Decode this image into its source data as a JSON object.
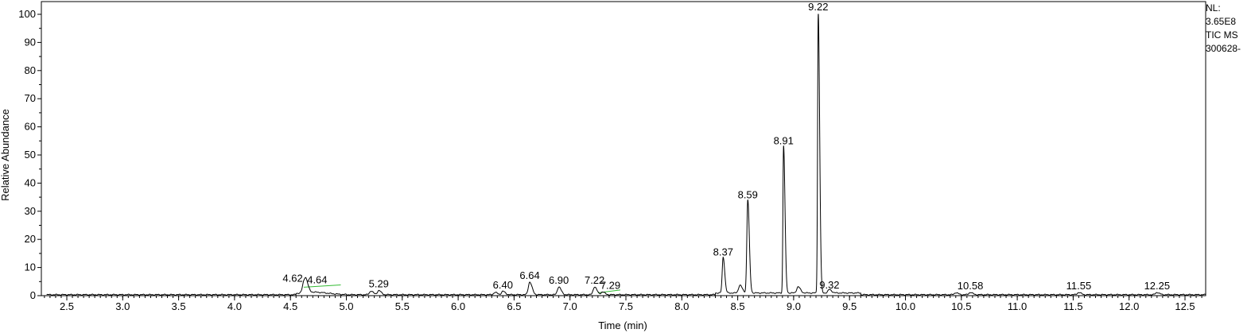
{
  "chart_data": {
    "type": "line",
    "xlabel": "Time (min)",
    "ylabel": "Relative Abundance",
    "xlim": [
      2.3,
      13.0
    ],
    "ylim": [
      0,
      100
    ],
    "x_ticks": [
      "2.5",
      "3.0",
      "3.5",
      "4.0",
      "4.5",
      "5.0",
      "5.5",
      "6.0",
      "6.5",
      "7.0",
      "7.5",
      "8.0",
      "8.5",
      "9.0",
      "9.5",
      "10.0",
      "10.5",
      "11.0",
      "11.5",
      "12.0",
      "12.5"
    ],
    "y_ticks": [
      "0",
      "10",
      "20",
      "30",
      "40",
      "50",
      "60",
      "70",
      "80",
      "90",
      "100"
    ],
    "grid": false,
    "legend": "none",
    "line_color": "#000000",
    "baseline_marker_color": "#33bb33",
    "peaks": [
      {
        "label": "4.62",
        "x": 4.62,
        "y": 3.5
      },
      {
        "label": "4.64",
        "x": 4.64,
        "y": 3.0
      },
      {
        "label": "5.29",
        "x": 5.29,
        "y": 1.5
      },
      {
        "label": "6.40",
        "x": 6.4,
        "y": 1.2
      },
      {
        "label": "6.64",
        "x": 6.64,
        "y": 4.5
      },
      {
        "label": "6.90",
        "x": 6.9,
        "y": 2.8
      },
      {
        "label": "7.22",
        "x": 7.22,
        "y": 2.8
      },
      {
        "label": "7.29",
        "x": 7.29,
        "y": 1.0
      },
      {
        "label": "8.37",
        "x": 8.37,
        "y": 12.8
      },
      {
        "label": "8.59",
        "x": 8.59,
        "y": 33.2
      },
      {
        "label": "8.91",
        "x": 8.91,
        "y": 52.4
      },
      {
        "label": "9.22",
        "x": 9.22,
        "y": 100
      },
      {
        "label": "9.32",
        "x": 9.32,
        "y": 1.2
      },
      {
        "label": "10.58",
        "x": 10.58,
        "y": 0.8
      },
      {
        "label": "11.55",
        "x": 11.55,
        "y": 0.8
      },
      {
        "label": "12.25",
        "x": 12.25,
        "y": 0.8
      }
    ],
    "minor_peaks": [
      {
        "x": 5.22,
        "y": 1.3
      },
      {
        "x": 6.33,
        "y": 0.8
      },
      {
        "x": 8.52,
        "y": 2.8
      },
      {
        "x": 9.04,
        "y": 2.2
      },
      {
        "x": 10.45,
        "y": 0.7
      }
    ]
  },
  "side_info": {
    "line1": "NL:",
    "line2": "3.65E8",
    "line3": "TIC  MS",
    "line4": "300628-"
  }
}
